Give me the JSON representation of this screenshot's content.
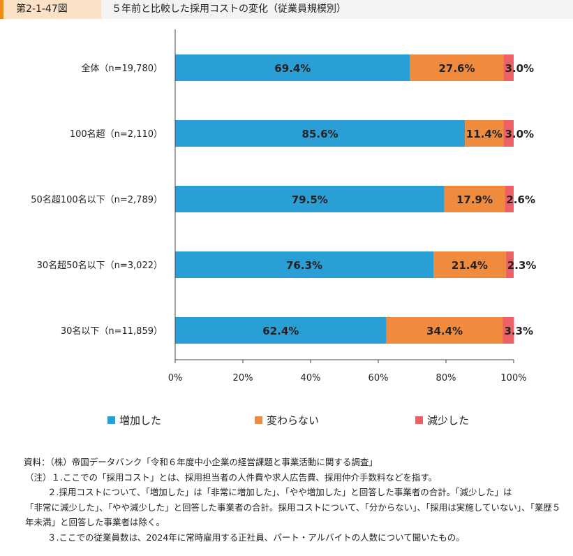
{
  "figure": {
    "number": "第2-1-47図",
    "title": "５年前と比較した採用コストの変化（従業員規模別）"
  },
  "colors": {
    "increase": "#2a9fd6",
    "same": "#f08a3c",
    "decrease": "#ee6066"
  },
  "chart_data": {
    "type": "bar",
    "orientation": "horizontal",
    "stacked": true,
    "categories": [
      "全体（n=19,780）",
      "100名超（n=2,110）",
      "50名超100名以下（n=2,789）",
      "30名超50名以下（n=3,022）",
      "30名以下（n=11,859）"
    ],
    "series": [
      {
        "name": "増加した",
        "values": [
          69.4,
          85.6,
          79.5,
          76.3,
          62.4
        ],
        "labels": [
          "69.4%",
          "85.6%",
          "79.5%",
          "76.3%",
          "62.4%"
        ]
      },
      {
        "name": "変わらない",
        "values": [
          27.6,
          11.4,
          17.9,
          21.4,
          34.4
        ],
        "labels": [
          "27.6%",
          "11.4%",
          "17.9%",
          "21.4%",
          "34.4%"
        ]
      },
      {
        "name": "減少した",
        "values": [
          3.0,
          3.0,
          2.6,
          2.3,
          3.3
        ],
        "labels": [
          "3.0%",
          "3.0%",
          "2.6%",
          "2.3%",
          "3.3%"
        ]
      }
    ],
    "xlim": [
      0,
      100
    ],
    "xticks": [
      "0%",
      "20%",
      "40%",
      "60%",
      "80%",
      "100%"
    ],
    "grid": false,
    "legend_position": "bottom"
  },
  "legend": [
    "増加した",
    "変わらない",
    "減少した"
  ],
  "notes": [
    "資料：（株）帝国データバンク「令和６年度中小企業の経営課題と事業活動に関する調査」",
    "（注）１.ここでの「採用コスト」とは、採用担当者の人件費や求人広告費、採用仲介手数料などを指す。",
    "２.採用コストについて、「増加した」は「非常に増加した」、「やや増加した」と回答した事業者の合計。「減少した」は",
    "「非常に減少した」、「やや減少した」と回答した事業者の合計。採用コストについて、「分からない」、「採用は実施していない」、「業歴５年未満」と回答した事業者は除く。",
    "３.ここでの従業員数は、2024年に常時雇用する正社員、パート・アルバイトの人数について聞いたもの。"
  ]
}
